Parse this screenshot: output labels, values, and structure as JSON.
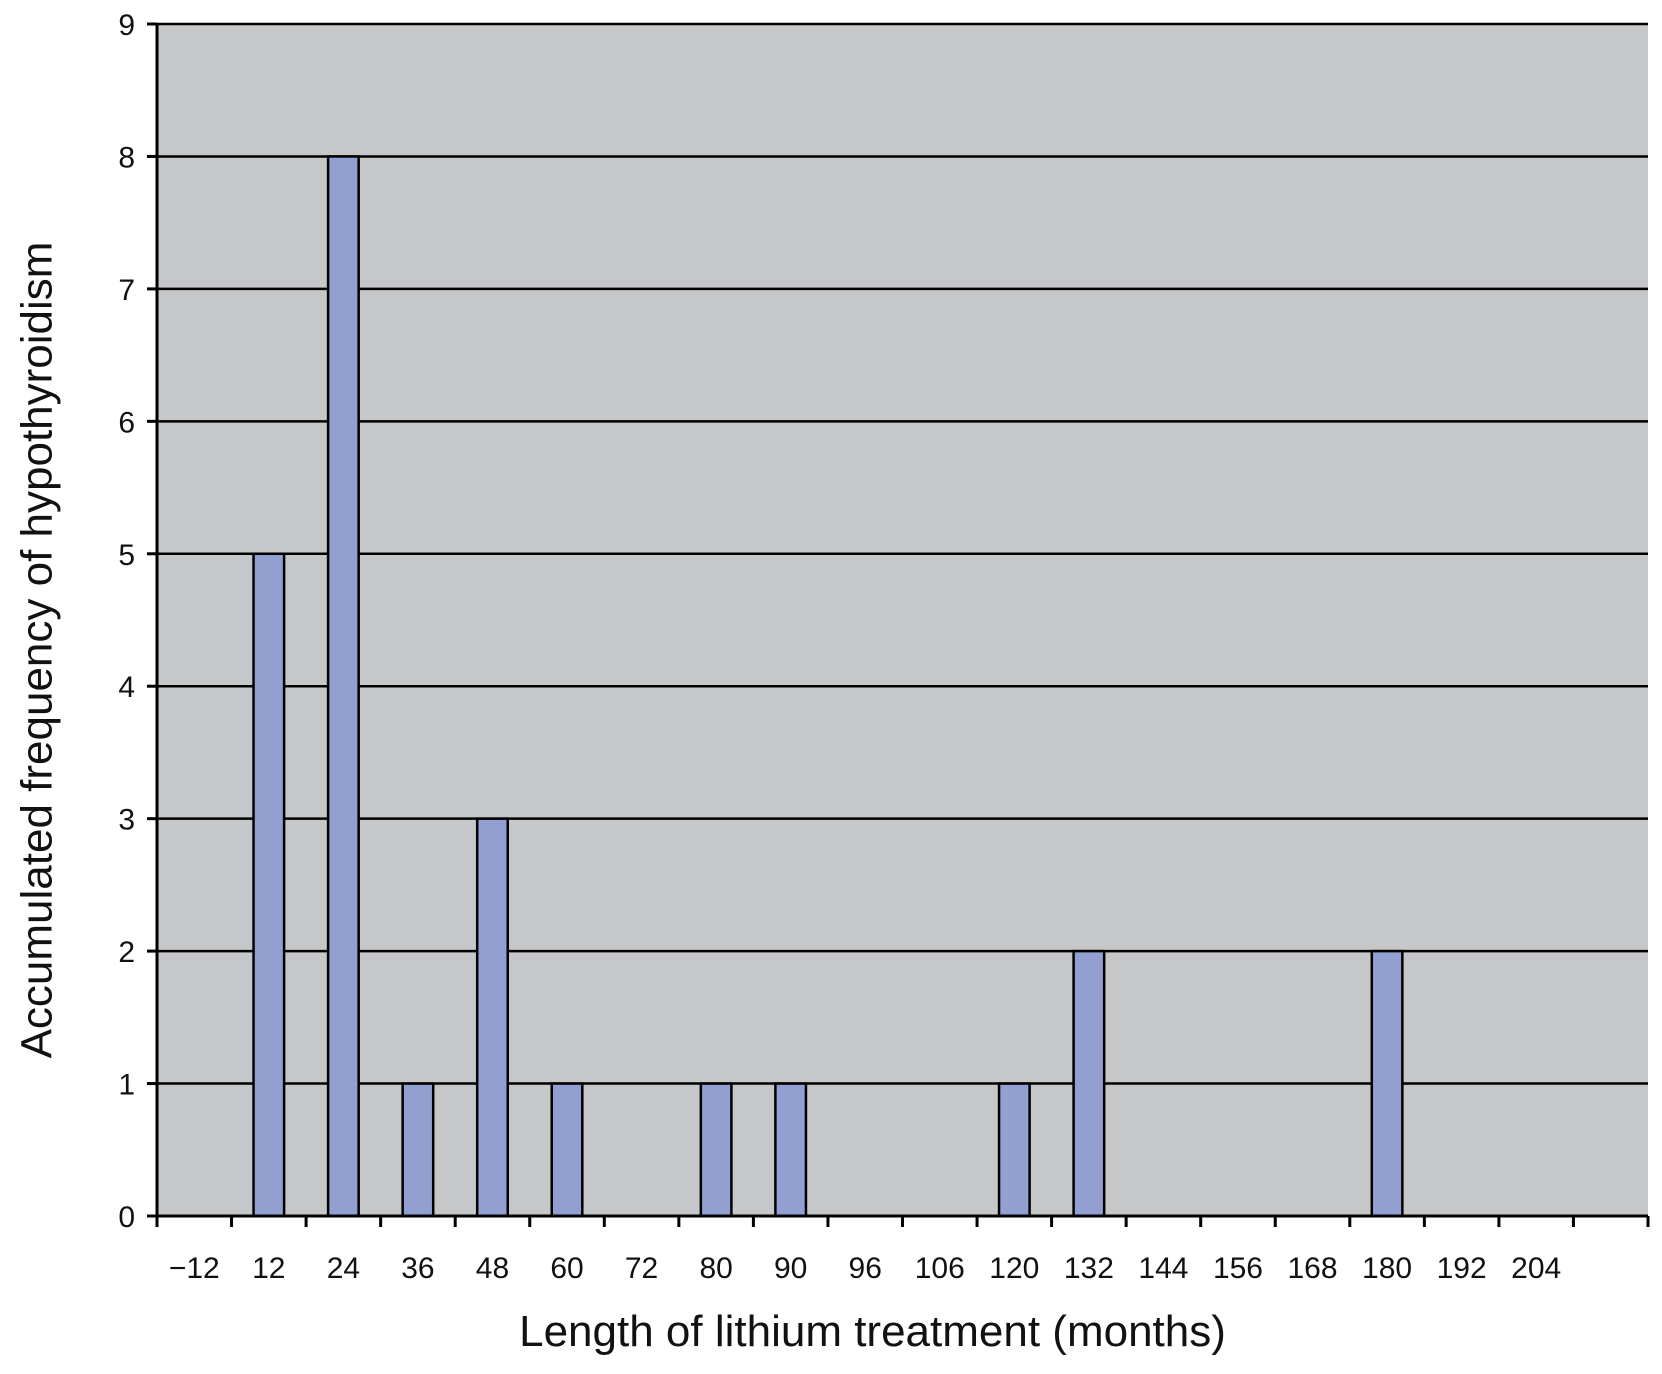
{
  "chart_data": {
    "type": "bar",
    "title": "",
    "xlabel": "Length of lithium treatment (months)",
    "ylabel": "Accumulated frequency of hypothyroidism",
    "categories": [
      "−12",
      "12",
      "24",
      "36",
      "48",
      "60",
      "72",
      "80",
      "90",
      "96",
      "106",
      "120",
      "132",
      "144",
      "156",
      "168",
      "180",
      "192",
      "204",
      ""
    ],
    "tick_labels": [
      "−12",
      "12",
      "24",
      "36",
      "48",
      "60",
      "72",
      "80",
      "90",
      "96",
      "106",
      "120",
      "132",
      "144",
      "156",
      "168",
      "180",
      "192",
      "204"
    ],
    "values": [
      0,
      5,
      8,
      1,
      3,
      1,
      0,
      1,
      1,
      0,
      0,
      1,
      2,
      0,
      0,
      0,
      2,
      0,
      0,
      0
    ],
    "ylim": [
      0,
      9
    ],
    "yticks": [
      0,
      1,
      2,
      3,
      4,
      5,
      6,
      7,
      8,
      9
    ],
    "grid": "horizontal",
    "legend": "none",
    "colors": {
      "plot_background": "#c6c7c9",
      "bar_fill": "#929fd1",
      "bar_stroke": "#000000",
      "grid": "#000000",
      "axis": "#000000"
    }
  }
}
